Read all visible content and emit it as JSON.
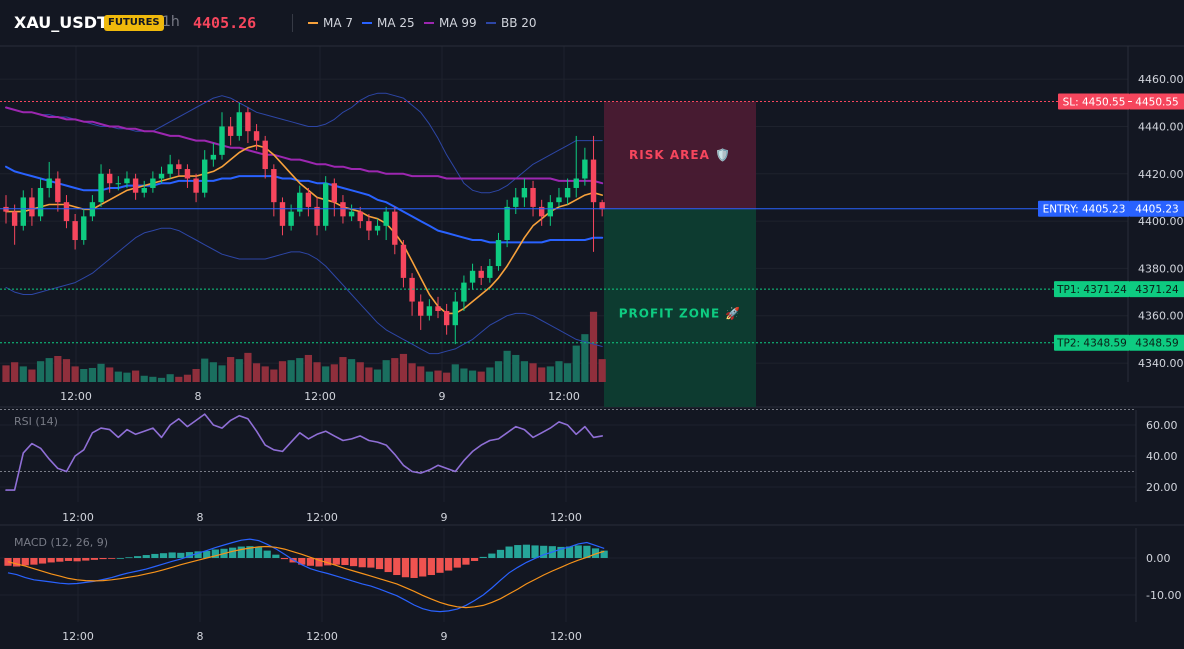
{
  "header": {
    "symbol": "XAU_USDT",
    "badge": "FUTURES",
    "interval": "1h",
    "price": "4405.26",
    "legend": [
      {
        "label": "MA 7",
        "color": "#f7a13b"
      },
      {
        "label": "MA 25",
        "color": "#2962ff"
      },
      {
        "label": "MA 99",
        "color": "#9c27b0"
      },
      {
        "label": "BB 20",
        "color": "#2d46a6"
      }
    ]
  },
  "colors": {
    "up": "#0ecb81",
    "down": "#f6465d",
    "vol_up": "#1a6f5f",
    "vol_down": "#8f2f3c",
    "ma7": "#f7a13b",
    "ma25": "#2962ff",
    "ma99": "#9c27b0",
    "bb": "#2d46a6",
    "rsi": "#8f6fd6",
    "macd_line": "#2962ff",
    "signal_line": "#f7931a",
    "hist_pos": "#26a69a",
    "hist_neg": "#ef5350",
    "sl": "#f6465d",
    "entry": "#2962ff",
    "tp": "#0ecb81"
  },
  "chart_data": [
    {
      "type": "candlestick",
      "panel": "price",
      "x_tick_labels": [
        "12:00",
        "8",
        "12:00",
        "9",
        "12:00"
      ],
      "y_ticks": [
        4340,
        4360,
        4380,
        4400,
        4420,
        4440,
        4460
      ],
      "y_tick_labels": [
        "4340.00",
        "4360.00",
        "4380.00",
        "4400.00",
        "4420.00",
        "4440.00",
        "4460.00"
      ],
      "ylim": [
        4332,
        4474
      ],
      "candles": [
        [
          4406,
          4404,
          4411,
          4399
        ],
        [
          4404,
          4398,
          4407,
          4390
        ],
        [
          4398,
          4410,
          4413,
          4396
        ],
        [
          4410,
          4402,
          4414,
          4398
        ],
        [
          4402,
          4414,
          4418,
          4400
        ],
        [
          4414,
          4418,
          4425,
          4410
        ],
        [
          4418,
          4408,
          4421,
          4404
        ],
        [
          4408,
          4400,
          4411,
          4397
        ],
        [
          4400,
          4392,
          4403,
          4388
        ],
        [
          4392,
          4402,
          4405,
          4390
        ],
        [
          4402,
          4408,
          4411,
          4400
        ],
        [
          4408,
          4420,
          4424,
          4406
        ],
        [
          4420,
          4416,
          4422,
          4412
        ],
        [
          4416,
          4416,
          4419,
          4413
        ],
        [
          4416,
          4418,
          4421,
          4414
        ],
        [
          4418,
          4412,
          4420,
          4409
        ],
        [
          4412,
          4414,
          4417,
          4410
        ],
        [
          4414,
          4418,
          4421,
          4412
        ],
        [
          4418,
          4420,
          4423,
          4416
        ],
        [
          4420,
          4424,
          4428,
          4418
        ],
        [
          4424,
          4422,
          4426,
          4419
        ],
        [
          4422,
          4418,
          4424,
          4414
        ],
        [
          4418,
          4412,
          4420,
          4408
        ],
        [
          4412,
          4426,
          4430,
          4410
        ],
        [
          4426,
          4428,
          4433,
          4423
        ],
        [
          4428,
          4440,
          4446,
          4426
        ],
        [
          4440,
          4436,
          4444,
          4432
        ],
        [
          4436,
          4446,
          4450,
          4434
        ],
        [
          4446,
          4438,
          4448,
          4433
        ],
        [
          4438,
          4434,
          4441,
          4430
        ],
        [
          4434,
          4422,
          4436,
          4418
        ],
        [
          4422,
          4408,
          4424,
          4402
        ],
        [
          4408,
          4398,
          4410,
          4394
        ],
        [
          4398,
          4404,
          4407,
          4396
        ],
        [
          4404,
          4412,
          4415,
          4402
        ],
        [
          4412,
          4406,
          4414,
          4402
        ],
        [
          4406,
          4398,
          4410,
          4394
        ],
        [
          4398,
          4416,
          4419,
          4396
        ],
        [
          4416,
          4408,
          4418,
          4402
        ],
        [
          4408,
          4402,
          4411,
          4399
        ],
        [
          4402,
          4404,
          4407,
          4400
        ],
        [
          4404,
          4400,
          4406,
          4397
        ],
        [
          4400,
          4396,
          4403,
          4392
        ],
        [
          4396,
          4398,
          4401,
          4394
        ],
        [
          4398,
          4404,
          4406,
          4392
        ],
        [
          4404,
          4390,
          4406,
          4386
        ],
        [
          4390,
          4376,
          4392,
          4372
        ],
        [
          4376,
          4366,
          4378,
          4360
        ],
        [
          4366,
          4360,
          4369,
          4354
        ],
        [
          4360,
          4364,
          4367,
          4358
        ],
        [
          4364,
          4362,
          4368,
          4359
        ],
        [
          4362,
          4356,
          4365,
          4352
        ],
        [
          4356,
          4366,
          4370,
          4348
        ],
        [
          4366,
          4374,
          4377,
          4362
        ],
        [
          4374,
          4379,
          4382,
          4371
        ],
        [
          4379,
          4376,
          4381,
          4373
        ],
        [
          4376,
          4381,
          4384,
          4374
        ],
        [
          4381,
          4392,
          4395,
          4379
        ],
        [
          4392,
          4406,
          4409,
          4389
        ],
        [
          4406,
          4410,
          4414,
          4403
        ],
        [
          4410,
          4414,
          4418,
          4406
        ],
        [
          4414,
          4406,
          4417,
          4402
        ],
        [
          4406,
          4402,
          4409,
          4398
        ],
        [
          4402,
          4408,
          4411,
          4398
        ],
        [
          4408,
          4410,
          4414,
          4406
        ],
        [
          4410,
          4414,
          4418,
          4407
        ],
        [
          4414,
          4418,
          4436,
          4410
        ],
        [
          4418,
          4426,
          4431,
          4415
        ],
        [
          4426,
          4408,
          4436,
          4387
        ],
        [
          4408,
          4405,
          4409,
          4402
        ]
      ],
      "ma7": [
        4404,
        4404,
        4404,
        4405,
        4406,
        4407,
        4407,
        4407,
        4406,
        4405,
        4405,
        4407,
        4409,
        4411,
        4413,
        4414,
        4415,
        4416,
        4417,
        4418,
        4419,
        4419,
        4419,
        4420,
        4421,
        4423,
        4426,
        4429,
        4431,
        4432,
        4431,
        4428,
        4424,
        4420,
        4416,
        4413,
        4410,
        4409,
        4408,
        4406,
        4405,
        4404,
        4402,
        4401,
        4399,
        4395,
        4390,
        4383,
        4376,
        4369,
        4364,
        4361,
        4361,
        4363,
        4366,
        4369,
        4372,
        4376,
        4381,
        4387,
        4393,
        4398,
        4401,
        4404,
        4406,
        4407,
        4409,
        4411,
        4412,
        4411
      ],
      "ma25": [
        4423,
        4421,
        4420,
        4419,
        4418,
        4417,
        4416,
        4415,
        4414,
        4413,
        4413,
        4413,
        4414,
        4414,
        4415,
        4415,
        4415,
        4415,
        4416,
        4416,
        4417,
        4417,
        4417,
        4417,
        4417,
        4418,
        4418,
        4419,
        4419,
        4419,
        4419,
        4419,
        4418,
        4418,
        4417,
        4417,
        4416,
        4416,
        4415,
        4414,
        4413,
        4412,
        4411,
        4409,
        4408,
        4406,
        4404,
        4402,
        4400,
        4398,
        4396,
        4395,
        4394,
        4393,
        4392,
        4392,
        4391,
        4391,
        4391,
        4391,
        4391,
        4391,
        4391,
        4392,
        4392,
        4392,
        4392,
        4392,
        4393,
        4393
      ],
      "ma99": [
        4448,
        4447,
        4446,
        4446,
        4445,
        4444,
        4444,
        4443,
        4443,
        4442,
        4442,
        4441,
        4440,
        4440,
        4439,
        4439,
        4438,
        4438,
        4437,
        4436,
        4436,
        4435,
        4434,
        4434,
        4433,
        4432,
        4431,
        4431,
        4430,
        4429,
        4428,
        4428,
        4427,
        4426,
        4426,
        4425,
        4424,
        4424,
        4423,
        4423,
        4422,
        4422,
        4421,
        4421,
        4420,
        4420,
        4420,
        4419,
        4419,
        4419,
        4419,
        4418,
        4418,
        4418,
        4418,
        4418,
        4418,
        4418,
        4418,
        4418,
        4418,
        4418,
        4418,
        4418,
        4417,
        4417,
        4417,
        4417,
        4417,
        4416
      ],
      "bb_upper": [
        4448,
        4447,
        4446,
        4446,
        4445,
        4445,
        4444,
        4444,
        4443,
        4442,
        4441,
        4440,
        4440,
        4439,
        4439,
        4438,
        4438,
        4438,
        4440,
        4442,
        4444,
        4446,
        4448,
        4450,
        4452,
        4453,
        4452,
        4450,
        4448,
        4446,
        4445,
        4444,
        4443,
        4442,
        4441,
        4440,
        4440,
        4441,
        4443,
        4446,
        4448,
        4451,
        4453,
        4454,
        4454,
        4453,
        4452,
        4449,
        4446,
        4441,
        4435,
        4428,
        4422,
        4416,
        4413,
        4412,
        4412,
        4413,
        4415,
        4418,
        4421,
        4424,
        4426,
        4428,
        4430,
        4432,
        4434,
        4434,
        4434,
        4434
      ],
      "bb_lower": [
        4372,
        4370,
        4369,
        4369,
        4370,
        4371,
        4372,
        4373,
        4374,
        4376,
        4378,
        4381,
        4384,
        4387,
        4390,
        4393,
        4395,
        4396,
        4397,
        4397,
        4396,
        4394,
        4392,
        4390,
        4388,
        4386,
        4385,
        4384,
        4384,
        4384,
        4384,
        4385,
        4386,
        4387,
        4387,
        4386,
        4384,
        4381,
        4377,
        4373,
        4369,
        4365,
        4361,
        4357,
        4354,
        4352,
        4350,
        4348,
        4346,
        4344,
        4344,
        4345,
        4346,
        4348,
        4350,
        4353,
        4356,
        4358,
        4360,
        4361,
        4361,
        4360,
        4358,
        4356,
        4354,
        4352,
        4350,
        4349,
        4348,
        4347
      ],
      "volume": [
        32,
        38,
        30,
        24,
        40,
        46,
        50,
        44,
        30,
        25,
        27,
        35,
        28,
        20,
        18,
        22,
        12,
        10,
        8,
        15,
        10,
        14,
        25,
        45,
        38,
        32,
        48,
        44,
        56,
        36,
        30,
        24,
        40,
        42,
        46,
        52,
        38,
        30,
        34,
        48,
        44,
        38,
        28,
        24,
        42,
        46,
        54,
        36,
        30,
        20,
        22,
        18,
        34,
        26,
        22,
        20,
        28,
        40,
        60,
        52,
        40,
        36,
        28,
        30,
        40,
        36,
        70,
        92,
        135,
        44
      ]
    },
    {
      "type": "line",
      "panel": "rsi",
      "title": "RSI (14)",
      "y_ticks": [
        20,
        40,
        60
      ],
      "y_tick_labels": [
        "20.00",
        "40.00",
        "60.00"
      ],
      "ylim": [
        10,
        70
      ],
      "overbought": 70,
      "oversold": 30,
      "values": [
        18,
        18,
        42,
        48,
        45,
        38,
        32,
        30,
        40,
        44,
        55,
        58,
        57,
        52,
        57,
        54,
        56,
        58,
        52,
        60,
        64,
        59,
        63,
        67,
        60,
        58,
        63,
        66,
        64,
        56,
        47,
        44,
        43,
        49,
        55,
        51,
        54,
        56,
        53,
        50,
        51,
        53,
        50,
        49,
        47,
        41,
        34,
        30,
        29,
        31,
        34,
        32,
        30,
        37,
        43,
        47,
        50,
        51,
        55,
        59,
        57,
        52,
        55,
        58,
        62,
        60,
        54,
        59,
        52,
        53
      ]
    },
    {
      "type": "bar+line",
      "panel": "macd",
      "title": "MACD (12, 26, 9)",
      "y_ticks": [
        -10,
        0
      ],
      "y_tick_labels": [
        "-10.00",
        "0.00"
      ],
      "ylim": [
        -17,
        8
      ],
      "histogram": [
        -2.1,
        -2.3,
        -2.0,
        -1.8,
        -1.5,
        -1.2,
        -1.0,
        -0.8,
        -0.9,
        -0.7,
        -0.5,
        -0.3,
        -0.2,
        0,
        0.2,
        0.5,
        0.8,
        1.1,
        1.3,
        1.5,
        1.4,
        1.6,
        1.8,
        1.9,
        2.3,
        2.5,
        2.8,
        3.1,
        3.2,
        2.9,
        2.0,
        0.9,
        -0.3,
        -1.2,
        -1.8,
        -2.1,
        -2.3,
        -2.0,
        -1.8,
        -1.9,
        -2.2,
        -2.5,
        -2.6,
        -3.0,
        -3.8,
        -4.6,
        -5.2,
        -5.4,
        -5.0,
        -4.6,
        -4.0,
        -3.4,
        -2.6,
        -1.8,
        -0.8,
        0.3,
        1.2,
        2.2,
        3.1,
        3.5,
        3.6,
        3.4,
        3.3,
        3.2,
        3.0,
        3.1,
        3.4,
        3.3,
        2.6,
        2.0
      ],
      "macd": [
        -4.0,
        -4.5,
        -5.3,
        -5.9,
        -6.2,
        -6.5,
        -6.8,
        -7.0,
        -6.9,
        -6.6,
        -6.3,
        -5.8,
        -5.3,
        -4.6,
        -4.0,
        -3.5,
        -3.0,
        -2.3,
        -1.6,
        -0.9,
        -0.3,
        0.5,
        1.3,
        2.0,
        2.8,
        3.5,
        4.2,
        4.8,
        5.1,
        4.7,
        3.7,
        2.5,
        1.0,
        -0.5,
        -1.8,
        -2.9,
        -3.6,
        -4.2,
        -4.9,
        -5.6,
        -6.3,
        -7.0,
        -7.6,
        -8.4,
        -9.3,
        -10.2,
        -11.4,
        -12.7,
        -13.7,
        -14.3,
        -14.5,
        -14.3,
        -13.8,
        -12.8,
        -11.5,
        -10.0,
        -8.1,
        -6.0,
        -4.0,
        -2.5,
        -1.2,
        -0.1,
        0.9,
        1.6,
        2.4,
        3.0,
        3.8,
        4.2,
        3.4,
        2.6
      ],
      "signal": [
        -1.0,
        -1.6,
        -2.2,
        -2.9,
        -3.6,
        -4.3,
        -4.9,
        -5.5,
        -5.9,
        -6.1,
        -6.2,
        -6.1,
        -5.9,
        -5.6,
        -5.2,
        -4.8,
        -4.3,
        -3.8,
        -3.2,
        -2.5,
        -1.8,
        -1.2,
        -0.6,
        0.0,
        0.6,
        1.2,
        1.8,
        2.3,
        2.7,
        3.0,
        3.1,
        2.9,
        2.4,
        1.7,
        1.0,
        0.2,
        -0.6,
        -1.3,
        -2.0,
        -2.8,
        -3.5,
        -4.2,
        -4.9,
        -5.6,
        -6.3,
        -7.0,
        -8.0,
        -9.0,
        -10.1,
        -11.1,
        -12.0,
        -12.7,
        -13.2,
        -13.4,
        -13.2,
        -12.8,
        -12.0,
        -11.0,
        -9.7,
        -8.4,
        -7.0,
        -5.8,
        -4.6,
        -3.5,
        -2.5,
        -1.5,
        -0.6,
        0.2,
        1.1,
        1.8
      ]
    }
  ],
  "trade": {
    "sl": 4450.55,
    "entry": 4405.23,
    "tp1": 4371.24,
    "tp2": 4348.59,
    "sl_label": "SL: 4450.55",
    "sl_price": "4450.55",
    "entry_label": "ENTRY: 4405.23",
    "entry_price": "4405.23",
    "tp1_label": "TP1: 4371.24",
    "tp1_price": "4371.24",
    "tp2_label": "TP2: 4348.59",
    "tp2_price": "4348.59",
    "risk_label": "RISK AREA 🛡️",
    "profit_label": "PROFIT ZONE 🚀"
  }
}
